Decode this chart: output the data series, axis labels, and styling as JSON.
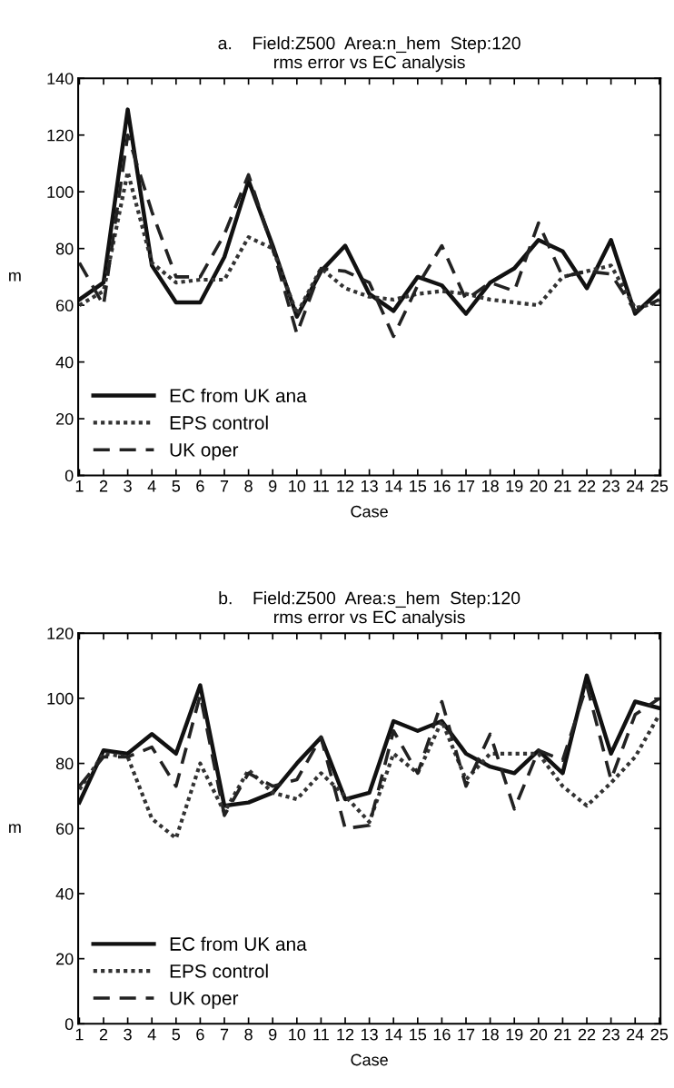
{
  "chart_data": [
    {
      "type": "line",
      "title": "a.    Field:Z500  Area:n_hem  Step:120",
      "subtitle": "rms error vs EC analysis",
      "xlabel": "Case",
      "ylabel": "m",
      "categories": [
        "1",
        "2",
        "3",
        "4",
        "5",
        "6",
        "7",
        "8",
        "9",
        "10",
        "11",
        "12",
        "13",
        "14",
        "15",
        "16",
        "17",
        "18",
        "19",
        "20",
        "21",
        "22",
        "23",
        "24",
        "25"
      ],
      "ylim": [
        0,
        140
      ],
      "yticks": [
        0,
        20,
        40,
        60,
        80,
        100,
        120,
        140
      ],
      "grid": false,
      "legend": "bottom left",
      "series": [
        {
          "name": "EC from UK ana",
          "color": "#111111",
          "line_style": "solid",
          "values": [
            62,
            68,
            129,
            74,
            61,
            61,
            77,
            104,
            81,
            56,
            72,
            81,
            64,
            58,
            70,
            67,
            57,
            68,
            73,
            83,
            79,
            66,
            83,
            57,
            65
          ]
        },
        {
          "name": "EPS control",
          "color": "#333333",
          "line_style": "dotted",
          "values": [
            60,
            65,
            107,
            75,
            68,
            69,
            69,
            84,
            80,
            57,
            73,
            66,
            63,
            62,
            64,
            65,
            64,
            62,
            61,
            60,
            70,
            72,
            74,
            59,
            61
          ]
        },
        {
          "name": "UK oper",
          "color": "#222222",
          "line_style": "dashed",
          "values": [
            75,
            60,
            120,
            93,
            70,
            70,
            85,
            106,
            80,
            50,
            73,
            72,
            68,
            49,
            67,
            81,
            62,
            68,
            65,
            89,
            70,
            72,
            71,
            58,
            62
          ]
        }
      ]
    },
    {
      "type": "line",
      "title": "b.    Field:Z500  Area:s_hem  Step:120",
      "subtitle": "rms error vs EC analysis",
      "xlabel": "Case",
      "ylabel": "m",
      "categories": [
        "1",
        "2",
        "3",
        "4",
        "5",
        "6",
        "7",
        "8",
        "9",
        "10",
        "11",
        "12",
        "13",
        "14",
        "15",
        "16",
        "17",
        "18",
        "19",
        "20",
        "21",
        "22",
        "23",
        "24",
        "25"
      ],
      "ylim": [
        0,
        120
      ],
      "yticks": [
        0,
        20,
        40,
        60,
        80,
        100,
        120
      ],
      "grid": false,
      "legend": "bottom left",
      "series": [
        {
          "name": "EC from UK ana",
          "color": "#111111",
          "line_style": "solid",
          "values": [
            68,
            84,
            83,
            89,
            83,
            104,
            67,
            68,
            71,
            80,
            88,
            69,
            71,
            93,
            90,
            93,
            83,
            79,
            77,
            84,
            77,
            107,
            83,
            99,
            97
          ]
        },
        {
          "name": "EPS control",
          "color": "#333333",
          "line_style": "dotted",
          "values": [
            72,
            83,
            82,
            63,
            57,
            80,
            65,
            78,
            71,
            69,
            77,
            70,
            62,
            83,
            77,
            93,
            75,
            83,
            83,
            83,
            73,
            67,
            74,
            82,
            95
          ]
        },
        {
          "name": "UK oper",
          "color": "#222222",
          "line_style": "dashed",
          "values": [
            73,
            82,
            82,
            85,
            73,
            101,
            64,
            77,
            73,
            75,
            88,
            60,
            61,
            90,
            77,
            99,
            73,
            89,
            66,
            84,
            81,
            104,
            75,
            95,
            100
          ]
        }
      ]
    }
  ]
}
